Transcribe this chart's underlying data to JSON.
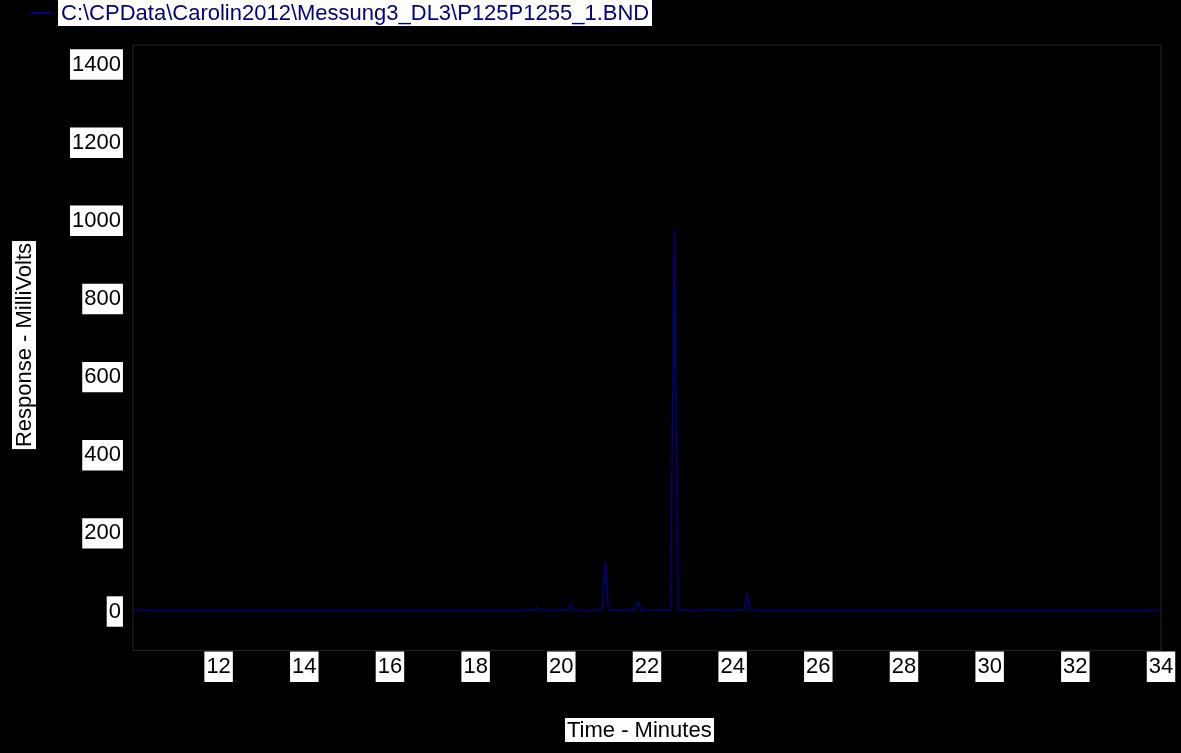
{
  "chart_data": {
    "type": "line",
    "xlabel": "Time - Minutes",
    "ylabel": "Response - MilliVolts",
    "xlim": [
      10,
      34
    ],
    "xticks": [
      12,
      14,
      16,
      18,
      20,
      22,
      24,
      26,
      28,
      30,
      32,
      34
    ],
    "ylim": [
      -100,
      1450
    ],
    "yticks": [
      0,
      200,
      400,
      600,
      800,
      1000,
      1200,
      1400
    ],
    "legend": "top left",
    "marker": "none",
    "line_style": "solid",
    "series": [
      {
        "name": "C:\\CPData\\Carolin2012\\Messung3_DL3\\P125P1255_1.BND",
        "color": "#000080",
        "x": [
          10,
          19.34,
          19.42,
          19.5,
          20.15,
          20.23,
          20.3,
          20.95,
          21.03,
          21.1,
          21.7,
          21.79,
          21.87,
          22.55,
          22.64,
          22.73,
          23.35,
          23.4,
          23.45,
          24.27,
          24.34,
          24.41,
          34
        ],
        "values": [
          3,
          3,
          10,
          3,
          3,
          18,
          3,
          3,
          127,
          3,
          3,
          24,
          3,
          3,
          975,
          3,
          3,
          6,
          3,
          3,
          45,
          3,
          3
        ]
      }
    ]
  }
}
